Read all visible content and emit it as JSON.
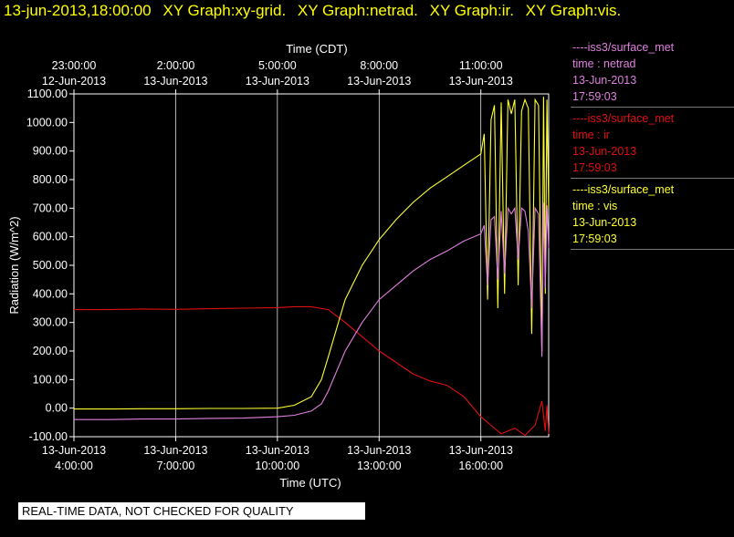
{
  "header": {
    "timestamp": "13-jun-2013,18:00:00",
    "graphs": [
      "XY Graph:xy-grid.",
      "XY Graph:netrad.",
      "XY Graph:ir.",
      "XY Graph:vis."
    ]
  },
  "colors": {
    "netrad": "#e080e0",
    "ir": "#e01010",
    "vis": "#ffff30",
    "grid": "#ffffff",
    "background": "#000000"
  },
  "disclaimer": "REAL-TIME DATA, NOT CHECKED FOR QUALITY",
  "legend": [
    {
      "source": "----iss3/surface_met",
      "var": "time : netrad",
      "date": "13-Jun-2013",
      "time": "17:59:03",
      "color": "#e080e0"
    },
    {
      "source": "----iss3/surface_met",
      "var": "time : ir",
      "date": "13-Jun-2013",
      "time": "17:59:03",
      "color": "#e01010"
    },
    {
      "source": "----iss3/surface_met",
      "var": "time : vis",
      "date": "13-Jun-2013",
      "time": "17:59:03",
      "color": "#ffff30"
    }
  ],
  "chart_data": {
    "type": "line",
    "xlabel": "Time (UTC)",
    "x2label": "Time (CDT)",
    "ylabel": "Radiation (W/m^2)",
    "xlim_hours_utc": [
      4,
      18
    ],
    "ylim": [
      -100,
      1100
    ],
    "yticks": [
      -100,
      0,
      100,
      200,
      300,
      400,
      500,
      600,
      700,
      800,
      900,
      1000,
      1100
    ],
    "ytick_labels": [
      "-100.00",
      "0.00",
      "100.00",
      "200.00",
      "300.00",
      "400.00",
      "500.00",
      "600.00",
      "700.00",
      "800.00",
      "900.00",
      "1000.00",
      "1100.00"
    ],
    "xticks_bottom": [
      {
        "h": 4,
        "date": "13-Jun-2013",
        "time": "4:00:00"
      },
      {
        "h": 7,
        "date": "13-Jun-2013",
        "time": "7:00:00"
      },
      {
        "h": 10,
        "date": "13-Jun-2013",
        "time": "10:00:00"
      },
      {
        "h": 13,
        "date": "13-Jun-2013",
        "time": "13:00:00"
      },
      {
        "h": 16,
        "date": "13-Jun-2013",
        "time": "16:00:00"
      }
    ],
    "xticks_top": [
      {
        "h": 4,
        "time": "23:00:00",
        "date": "12-Jun-2013"
      },
      {
        "h": 7,
        "time": "2:00:00",
        "date": "13-Jun-2013"
      },
      {
        "h": 10,
        "time": "5:00:00",
        "date": "13-Jun-2013"
      },
      {
        "h": 13,
        "time": "8:00:00",
        "date": "13-Jun-2013"
      },
      {
        "h": 16,
        "time": "11:00:00",
        "date": "13-Jun-2013"
      }
    ],
    "series": [
      {
        "key": "ir",
        "color": "#e01010",
        "x": [
          4,
          5,
          6,
          7,
          8,
          9,
          10,
          10.5,
          11,
          11.5,
          12,
          12.5,
          13,
          13.5,
          14,
          14.5,
          15,
          15.5,
          16,
          16.3,
          16.6,
          17,
          17.3,
          17.6,
          17.8,
          17.9,
          17.95,
          18.0
        ],
        "y": [
          345,
          345,
          347,
          346,
          348,
          350,
          352,
          355,
          355,
          345,
          300,
          250,
          200,
          160,
          120,
          95,
          80,
          40,
          -30,
          -60,
          -90,
          -70,
          -95,
          -60,
          25,
          -80,
          10,
          -90
        ]
      },
      {
        "key": "vis",
        "color": "#ffff30",
        "x": [
          4,
          5,
          6,
          7,
          8,
          9,
          10,
          10.5,
          11,
          11.3,
          11.5,
          12,
          12.5,
          13,
          13.5,
          14,
          14.5,
          15,
          15.5,
          16,
          16.1,
          16.2,
          16.3,
          16.4,
          16.5,
          16.6,
          16.7,
          16.8,
          16.9,
          17,
          17.1,
          17.2,
          17.3,
          17.4,
          17.5,
          17.6,
          17.7,
          17.8,
          17.85,
          17.9,
          17.95,
          18.0
        ],
        "y": [
          -3,
          -3,
          -2,
          -2,
          -1,
          -1,
          0,
          10,
          40,
          100,
          180,
          380,
          500,
          590,
          660,
          720,
          770,
          810,
          850,
          890,
          960,
          380,
          1010,
          1060,
          350,
          1070,
          400,
          1080,
          1030,
          1080,
          430,
          1040,
          1080,
          1050,
          260,
          1080,
          1060,
          200,
          1090,
          400,
          1080,
          700
        ]
      },
      {
        "key": "netrad",
        "color": "#e080e0",
        "x": [
          4,
          5,
          6,
          7,
          8,
          9,
          10,
          10.5,
          11,
          11.3,
          11.5,
          12,
          12.5,
          13,
          13.5,
          14,
          14.5,
          15,
          15.5,
          16,
          16.1,
          16.2,
          16.3,
          16.4,
          16.5,
          16.6,
          16.7,
          16.8,
          16.9,
          17,
          17.1,
          17.2,
          17.3,
          17.4,
          17.5,
          17.6,
          17.7,
          17.8,
          17.85,
          17.9,
          17.95,
          18.0
        ],
        "y": [
          -40,
          -40,
          -38,
          -38,
          -36,
          -35,
          -30,
          -25,
          -10,
          15,
          60,
          200,
          300,
          380,
          430,
          480,
          520,
          550,
          585,
          610,
          640,
          430,
          660,
          670,
          450,
          690,
          470,
          700,
          680,
          700,
          520,
          700,
          690,
          620,
          350,
          700,
          680,
          180,
          720,
          420,
          710,
          560
        ]
      }
    ]
  }
}
